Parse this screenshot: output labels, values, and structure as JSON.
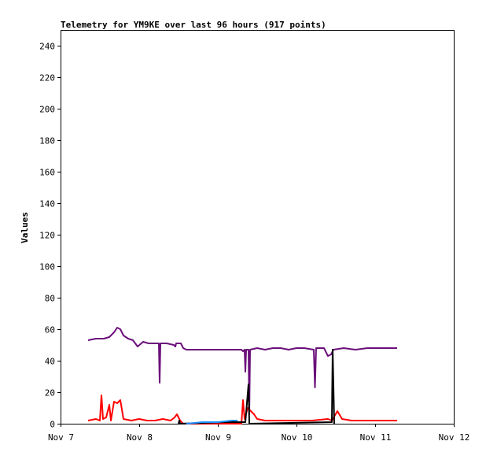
{
  "chart_data": {
    "type": "line",
    "title": "Telemetry for YM9KE over last 96 hours (917 points)",
    "xlabel": "",
    "ylabel": "Values",
    "ylim": [
      0,
      250
    ],
    "yticks": [
      0,
      20,
      40,
      60,
      80,
      100,
      120,
      140,
      160,
      180,
      200,
      220,
      240
    ],
    "xlim": [
      "Nov 7",
      "Nov 12"
    ],
    "xticks": [
      "Nov 7",
      "Nov 8",
      "Nov 9",
      "Nov 10",
      "Nov 11",
      "Nov 12"
    ],
    "grid": false,
    "legend": "none",
    "series": [
      {
        "color": "#6b0f7a",
        "points": [
          [
            7.35,
            53
          ],
          [
            7.45,
            54
          ],
          [
            7.55,
            54
          ],
          [
            7.62,
            55
          ],
          [
            7.68,
            58
          ],
          [
            7.72,
            61
          ],
          [
            7.76,
            60
          ],
          [
            7.8,
            56
          ],
          [
            7.86,
            54
          ],
          [
            7.92,
            53
          ],
          [
            7.98,
            49
          ],
          [
            8.05,
            52
          ],
          [
            8.12,
            51
          ],
          [
            8.2,
            51
          ],
          [
            8.25,
            51
          ],
          [
            8.26,
            26
          ],
          [
            8.27,
            51
          ],
          [
            8.35,
            51
          ],
          [
            8.44,
            50
          ],
          [
            8.46,
            49
          ],
          [
            8.47,
            51
          ],
          [
            8.53,
            51
          ],
          [
            8.56,
            48
          ],
          [
            8.6,
            47
          ],
          [
            9.3,
            47
          ],
          [
            9.32,
            46
          ],
          [
            9.34,
            47
          ],
          [
            9.35,
            33
          ],
          [
            9.36,
            47
          ],
          [
            9.39,
            47
          ],
          [
            9.4,
            6
          ],
          [
            9.41,
            47
          ],
          [
            9.5,
            48
          ],
          [
            9.6,
            47
          ],
          [
            9.7,
            48
          ],
          [
            9.8,
            48
          ],
          [
            9.9,
            47
          ],
          [
            10.0,
            48
          ],
          [
            10.1,
            48
          ],
          [
            10.22,
            47
          ],
          [
            10.235,
            23
          ],
          [
            10.25,
            48
          ],
          [
            10.35,
            48
          ],
          [
            10.4,
            43
          ],
          [
            10.44,
            44
          ],
          [
            10.47,
            47
          ],
          [
            10.6,
            48
          ],
          [
            10.75,
            47
          ],
          [
            10.9,
            48
          ],
          [
            11.05,
            48
          ],
          [
            11.2,
            48
          ],
          [
            11.28,
            48
          ]
        ]
      },
      {
        "color": "#ff0000",
        "points": [
          [
            7.35,
            2
          ],
          [
            7.45,
            3
          ],
          [
            7.5,
            2
          ],
          [
            7.52,
            18
          ],
          [
            7.54,
            3
          ],
          [
            7.58,
            4
          ],
          [
            7.62,
            12
          ],
          [
            7.64,
            2
          ],
          [
            7.68,
            14
          ],
          [
            7.72,
            13
          ],
          [
            7.76,
            15
          ],
          [
            7.8,
            3
          ],
          [
            7.9,
            2
          ],
          [
            8.0,
            3
          ],
          [
            8.1,
            2
          ],
          [
            8.2,
            2
          ],
          [
            8.3,
            3
          ],
          [
            8.4,
            2
          ],
          [
            8.45,
            4
          ],
          [
            8.48,
            6
          ],
          [
            8.52,
            2
          ],
          [
            8.56,
            0
          ],
          [
            9.3,
            0
          ],
          [
            9.32,
            15
          ],
          [
            9.34,
            3
          ],
          [
            9.38,
            10
          ],
          [
            9.42,
            8
          ],
          [
            9.46,
            6
          ],
          [
            9.5,
            3
          ],
          [
            9.6,
            2
          ],
          [
            9.8,
            2
          ],
          [
            10.0,
            2
          ],
          [
            10.2,
            2
          ],
          [
            10.4,
            3
          ],
          [
            10.45,
            2
          ],
          [
            10.52,
            8
          ],
          [
            10.58,
            3
          ],
          [
            10.7,
            2
          ],
          [
            10.9,
            2
          ],
          [
            11.1,
            2
          ],
          [
            11.28,
            2
          ]
        ]
      },
      {
        "color": "#000000",
        "points": [
          [
            8.5,
            0
          ],
          [
            8.51,
            2
          ],
          [
            8.52,
            0
          ],
          [
            9.1,
            1
          ],
          [
            9.35,
            1
          ],
          [
            9.39,
            25
          ],
          [
            9.4,
            0
          ],
          [
            10.45,
            1
          ],
          [
            10.46,
            47
          ],
          [
            10.47,
            24
          ],
          [
            10.48,
            0
          ]
        ]
      },
      {
        "color": "#1e90ff",
        "points": [
          [
            8.6,
            0
          ],
          [
            8.8,
            1
          ],
          [
            8.95,
            1
          ],
          [
            9.0,
            1
          ],
          [
            9.18,
            2
          ],
          [
            9.25,
            2
          ]
        ]
      }
    ]
  }
}
